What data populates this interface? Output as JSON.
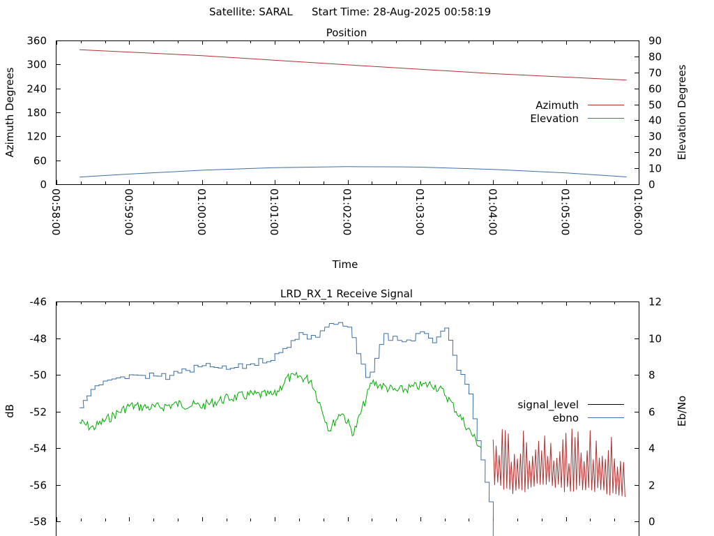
{
  "header": {
    "satellite_label": "Satellite: SARAL",
    "start_time_label": "Start Time: 28-Aug-2025 00:58:19"
  },
  "chart_data": [
    {
      "type": "line",
      "title": "Position",
      "xlabel": "Time",
      "ylabel_left": "Azimuth Degrees",
      "ylabel_right": "Elevation Degrees",
      "x_ticks": [
        "00:58:00",
        "00:59:00",
        "01:00:00",
        "01:01:00",
        "01:02:00",
        "01:03:00",
        "01:04:00",
        "01:05:00",
        "01:06:00"
      ],
      "y_left_ticks": [
        "0",
        "60",
        "120",
        "180",
        "240",
        "300",
        "360"
      ],
      "y_right_ticks": [
        "0",
        "10",
        "20",
        "30",
        "40",
        "50",
        "60",
        "70",
        "80",
        "90"
      ],
      "xlim": [
        "00:58:00",
        "01:06:00"
      ],
      "ylim_left": [
        0,
        360
      ],
      "ylim_right": [
        0,
        90
      ],
      "legend_position": "right",
      "series": [
        {
          "name": "Azimuth",
          "axis": "left",
          "color": "#b03030",
          "points": [
            [
              "00:58:19",
              337
            ],
            [
              "01:00:00",
              322
            ],
            [
              "01:02:00",
              299
            ],
            [
              "01:04:00",
              277
            ],
            [
              "01:05:50",
              261
            ]
          ]
        },
        {
          "name": "Elevation",
          "axis": "right",
          "color": "#3a6ea5",
          "points": [
            [
              "00:58:19",
              4.5
            ],
            [
              "00:59:00",
              6.4
            ],
            [
              "01:00:00",
              8.8
            ],
            [
              "01:01:00",
              10.4
            ],
            [
              "01:01:45",
              10.9
            ],
            [
              "01:02:00",
              11.0
            ],
            [
              "01:02:45",
              10.9
            ],
            [
              "01:03:00",
              10.7
            ],
            [
              "01:04:00",
              9.3
            ],
            [
              "01:05:00",
              7.1
            ],
            [
              "01:05:50",
              4.6
            ]
          ]
        }
      ]
    },
    {
      "type": "line",
      "title": "LRD_RX_1 Receive Signal",
      "ylabel_left": "dB",
      "ylabel_right": "Eb/No",
      "y_left_ticks": [
        "-46",
        "-48",
        "-50",
        "-52",
        "-54",
        "-56",
        "-58"
      ],
      "y_right_ticks": [
        "12",
        "10",
        "8",
        "6",
        "4",
        "2",
        "0"
      ],
      "xlim": [
        "00:58:00",
        "01:06:00"
      ],
      "ylim_left": [
        -58,
        -46
      ],
      "ylim_right": [
        0,
        12
      ],
      "legend_position": "right",
      "series": [
        {
          "name": "signal_level",
          "axis": "left",
          "color": "#000000",
          "segments": [
            {
              "color": "#00aa00",
              "points": [
                [
                  "00:58:19",
                  -52.6
                ],
                [
                  "00:58:30",
                  -52.9
                ],
                [
                  "00:58:45",
                  -52.3
                ],
                [
                  "00:59:00",
                  -51.7
                ],
                [
                  "00:59:20",
                  -51.8
                ],
                [
                  "00:59:40",
                  -51.6
                ],
                [
                  "01:00:00",
                  -51.7
                ],
                [
                  "01:00:20",
                  -51.3
                ],
                [
                  "01:00:40",
                  -51.1
                ],
                [
                  "01:01:00",
                  -51.1
                ],
                [
                  "01:01:10",
                  -50.2
                ],
                [
                  "01:01:20",
                  -50.1
                ],
                [
                  "01:01:30",
                  -50.3
                ],
                [
                  "01:01:45",
                  -53.0
                ],
                [
                  "01:01:55",
                  -52.0
                ],
                [
                  "01:02:05",
                  -53.2
                ],
                [
                  "01:02:20",
                  -50.4
                ],
                [
                  "01:02:40",
                  -50.9
                ],
                [
                  "01:03:00",
                  -50.6
                ],
                [
                  "01:03:10",
                  -50.5
                ],
                [
                  "01:03:20",
                  -51.0
                ],
                [
                  "01:03:40",
                  -53.0
                ],
                [
                  "01:03:50",
                  -54.0
                ]
              ]
            },
            {
              "color": "#b03030",
              "points": [
                [
                  "01:04:00",
                  -55.3
                ],
                [
                  "01:04:20",
                  -55.8
                ],
                [
                  "01:04:40",
                  -55.3
                ],
                [
                  "01:05:00",
                  -55.6
                ],
                [
                  "01:05:20",
                  -55.6
                ],
                [
                  "01:05:40",
                  -56.0
                ],
                [
                  "01:05:50",
                  -56.2
                ]
              ]
            }
          ]
        },
        {
          "name": "ebno",
          "axis": "right",
          "color": "#3a6ea5",
          "points": [
            [
              "00:58:19",
              6.2
            ],
            [
              "00:58:25",
              7.0
            ],
            [
              "00:58:35",
              7.6
            ],
            [
              "00:59:00",
              8.0
            ],
            [
              "00:59:30",
              7.9
            ],
            [
              "01:00:00",
              8.5
            ],
            [
              "01:00:20",
              8.3
            ],
            [
              "01:00:40",
              8.6
            ],
            [
              "01:01:00",
              9.0
            ],
            [
              "01:01:20",
              10.3
            ],
            [
              "01:01:30",
              10.0
            ],
            [
              "01:01:45",
              10.8
            ],
            [
              "01:02:00",
              10.6
            ],
            [
              "01:02:15",
              7.7
            ],
            [
              "01:02:30",
              10.1
            ],
            [
              "01:02:45",
              9.8
            ],
            [
              "01:03:00",
              10.2
            ],
            [
              "01:03:10",
              9.9
            ],
            [
              "01:03:20",
              10.4
            ],
            [
              "01:03:30",
              8.4
            ],
            [
              "01:03:40",
              6.8
            ],
            [
              "01:03:50",
              3.2
            ],
            [
              "01:04:00",
              0.0
            ]
          ]
        }
      ]
    }
  ]
}
